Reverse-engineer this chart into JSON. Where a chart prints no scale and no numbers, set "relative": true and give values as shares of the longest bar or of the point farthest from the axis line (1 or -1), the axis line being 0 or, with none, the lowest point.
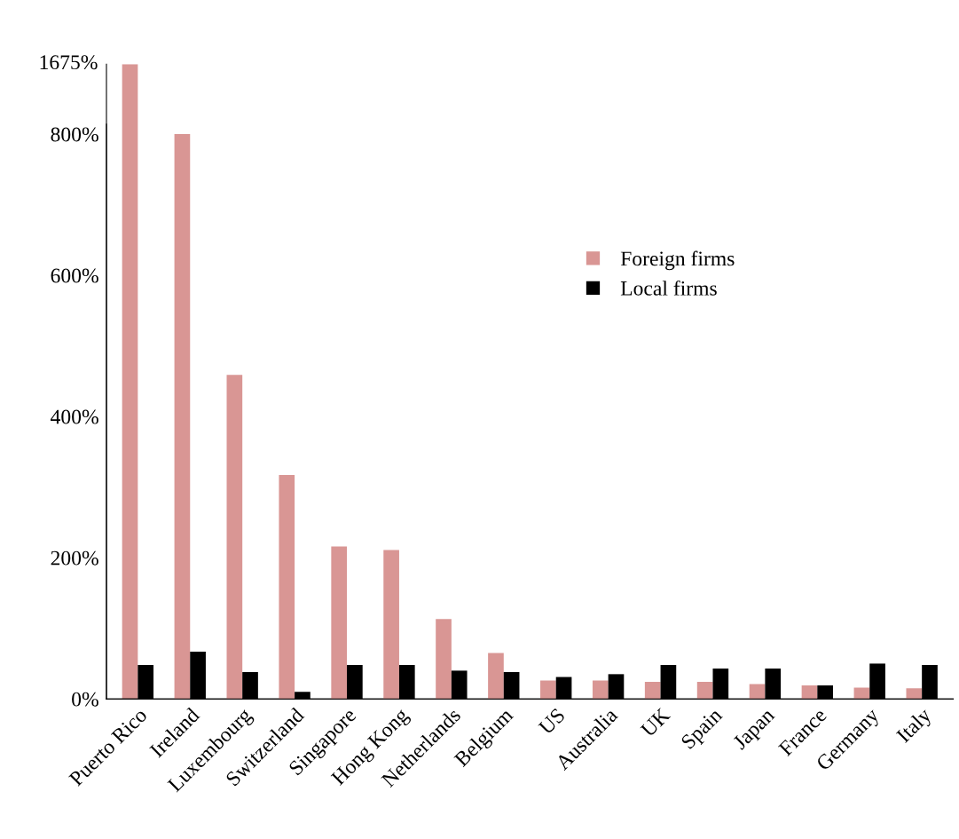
{
  "chart_data": [
    {
      "type": "bar",
      "relative": true,
      "series": [
        {
          "color": "#d99694",
          "values": [
            1,
            null,
            null,
            null,
            null,
            null,
            null,
            null,
            null,
            null,
            null,
            null,
            null,
            null,
            null,
            null
          ]
        }
      ],
      "annotations": [
        "1675%"
      ]
    },
    {
      "type": "bar",
      "categories": [
        "Puerto Rico",
        "Ireland",
        "Luxembourg",
        "Switzerland",
        "Singapore",
        "Hong Kong",
        "Netherlands",
        "Belgium",
        "US",
        "Australia",
        "UK",
        "Spain",
        "Japan",
        "France",
        "Germany",
        "Italy"
      ],
      "series": [
        {
          "name": "Foreign firms",
          "color": "#d99694",
          "values": [
            null,
            800,
            459,
            317,
            216,
            211,
            113,
            65,
            26,
            26,
            24,
            24,
            21,
            19,
            16,
            15
          ]
        },
        {
          "name": "Local firms",
          "color": "#000000",
          "values": [
            48,
            67,
            38,
            10,
            48,
            48,
            40,
            38,
            31,
            35,
            48,
            43,
            43,
            19,
            50,
            48
          ]
        }
      ],
      "ylim": [
        0,
        814
      ],
      "yticks": [
        {
          "value": 0,
          "label": "0%"
        },
        {
          "value": 200,
          "label": "200%"
        },
        {
          "value": 400,
          "label": "400%"
        },
        {
          "value": 600,
          "label": "600%"
        },
        {
          "value": 800,
          "label": "800%"
        }
      ],
      "legend": "top right"
    }
  ]
}
